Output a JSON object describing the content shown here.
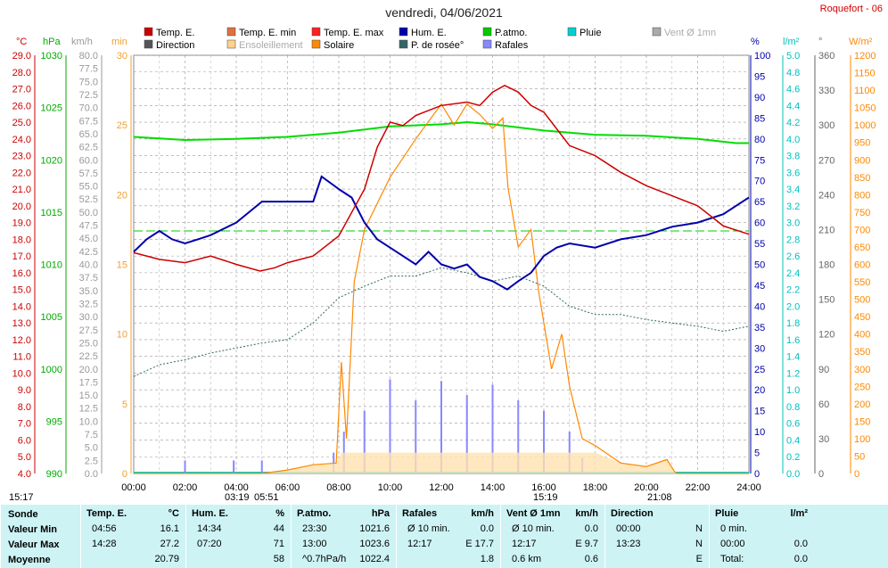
{
  "title": "vendredi, 04/06/2021",
  "station": "Roquefort - 06",
  "legend": [
    {
      "label": "Temp. E.",
      "color": "#cc0000"
    },
    {
      "label": "Temp. E. min",
      "color": "#e07040"
    },
    {
      "label": "Temp. E. max",
      "color": "#ff2020"
    },
    {
      "label": "Hum. E.",
      "color": "#0000aa"
    },
    {
      "label": "P.atmo.",
      "color": "#00cc00"
    },
    {
      "label": "Pluie",
      "color": "#00d0d0"
    },
    {
      "label": "Vent Ø 1mn",
      "color": "#aaaaaa"
    },
    {
      "label": "Direction",
      "color": "#555555"
    },
    {
      "label": "Ensoleillement",
      "color": "#ffd28a"
    },
    {
      "label": "Solaire",
      "color": "#ff8800"
    },
    {
      "label": "P. de rosée°",
      "color": "#336666"
    },
    {
      "label": "Rafales",
      "color": "#8888ff"
    }
  ],
  "axis_units": {
    "temp": "°C",
    "press": "hPa",
    "wind": "km/h",
    "min": "min",
    "hum": "%",
    "rain": "l/m²",
    "dir": "°",
    "solar": "W/m²"
  },
  "time_marks": {
    "now": "15:17",
    "sunrise": "03:19",
    "sunrise2": "05:51",
    "tmax": "15:19",
    "sunset": "21:08"
  },
  "footer": {
    "sonde": {
      "header": "Sonde",
      "rows": [
        "Valeur Min",
        "Valeur Max",
        "Moyenne"
      ]
    },
    "temp": {
      "header": "Temp. E.",
      "unit": "°C",
      "times": [
        "04:56",
        "14:28",
        ""
      ],
      "values": [
        "16.1",
        "27.2",
        "20.79"
      ]
    },
    "hum": {
      "header": "Hum. E.",
      "unit": "%",
      "times": [
        "14:34",
        "07:20",
        ""
      ],
      "values": [
        "44",
        "71",
        "58"
      ]
    },
    "press": {
      "header": "P.atmo.",
      "unit": "hPa",
      "times": [
        "23:30",
        "13:00",
        "^0.7hPa/h"
      ],
      "values": [
        "1021.6",
        "1023.6",
        "1022.4"
      ]
    },
    "gust": {
      "header": "Rafales",
      "unit": "km/h",
      "times": [
        "Ø 10 min.",
        "12:17",
        ""
      ],
      "values": [
        "0.0",
        "E 17.7",
        "1.8"
      ]
    },
    "wind": {
      "header": "Vent Ø 1mn",
      "unit": "km/h",
      "times": [
        "Ø 10 min.",
        "12:17",
        "0.6 km"
      ],
      "values": [
        "0.0",
        "E 9.7",
        "0.6"
      ]
    },
    "dir": {
      "header": "Direction",
      "unit": "",
      "times": [
        "00:00",
        "13:23",
        ""
      ],
      "values": [
        "N",
        "N",
        "E"
      ]
    },
    "rain": {
      "header": "Pluie",
      "unit": "l/m²",
      "times": [
        "0 min.",
        "00:00",
        "Total:"
      ],
      "values": [
        "",
        "0.0",
        "0.0"
      ]
    }
  },
  "chart_data": {
    "type": "line",
    "x_range": [
      "00:00",
      "24:00"
    ],
    "x_ticks": [
      "00:00",
      "02:00",
      "04:00",
      "06:00",
      "08:00",
      "10:00",
      "12:00",
      "14:00",
      "16:00",
      "18:00",
      "20:00",
      "22:00",
      "24:00"
    ],
    "axes": {
      "temp": {
        "range": [
          4,
          29
        ],
        "step": 1
      },
      "press": {
        "range": [
          990,
          1030
        ],
        "step": 5
      },
      "wind": {
        "range": [
          0,
          80
        ],
        "step": 2.5
      },
      "min": {
        "range": [
          0,
          30
        ],
        "step": 5
      },
      "hum": {
        "range": [
          0,
          100
        ],
        "step": 5
      },
      "rain": {
        "range": [
          0,
          5
        ],
        "step": 0.2
      },
      "dir": {
        "range": [
          0,
          360
        ],
        "step": 30
      },
      "solar": {
        "range": [
          0,
          1200
        ],
        "step": 50
      }
    },
    "series": [
      {
        "name": "Temp. E.",
        "axis": "temp",
        "points": [
          [
            0,
            17.2
          ],
          [
            1,
            16.8
          ],
          [
            2,
            16.6
          ],
          [
            3,
            17.0
          ],
          [
            4,
            16.5
          ],
          [
            4.93,
            16.1
          ],
          [
            5.5,
            16.3
          ],
          [
            6,
            16.6
          ],
          [
            7,
            17.0
          ],
          [
            8,
            18.2
          ],
          [
            9,
            21.0
          ],
          [
            9.5,
            23.5
          ],
          [
            10,
            25.0
          ],
          [
            10.5,
            24.8
          ],
          [
            11,
            25.4
          ],
          [
            12,
            26.0
          ],
          [
            13,
            26.2
          ],
          [
            13.5,
            26.0
          ],
          [
            14,
            26.8
          ],
          [
            14.47,
            27.2
          ],
          [
            15,
            26.8
          ],
          [
            15.5,
            26.0
          ],
          [
            16,
            25.6
          ],
          [
            16.5,
            24.6
          ],
          [
            17,
            23.6
          ],
          [
            18,
            23.0
          ],
          [
            19,
            22.0
          ],
          [
            20,
            21.2
          ],
          [
            21,
            20.6
          ],
          [
            22,
            20.0
          ],
          [
            23,
            18.8
          ],
          [
            24,
            18.3
          ]
        ]
      },
      {
        "name": "Hum. E.",
        "axis": "hum",
        "points": [
          [
            0,
            53
          ],
          [
            0.5,
            56
          ],
          [
            1,
            58
          ],
          [
            1.5,
            56
          ],
          [
            2,
            55
          ],
          [
            2.5,
            56
          ],
          [
            3,
            57
          ],
          [
            4,
            60
          ],
          [
            5,
            65
          ],
          [
            6,
            65
          ],
          [
            7,
            65
          ],
          [
            7.33,
            71
          ],
          [
            8,
            68
          ],
          [
            8.5,
            66
          ],
          [
            9,
            60
          ],
          [
            9.5,
            56
          ],
          [
            10,
            54
          ],
          [
            10.5,
            52
          ],
          [
            11,
            50
          ],
          [
            11.5,
            53
          ],
          [
            12,
            50
          ],
          [
            12.5,
            49
          ],
          [
            13,
            50
          ],
          [
            13.5,
            47
          ],
          [
            14,
            46
          ],
          [
            14.57,
            44
          ],
          [
            15,
            46
          ],
          [
            15.5,
            48
          ],
          [
            16,
            52
          ],
          [
            16.5,
            54
          ],
          [
            17,
            55
          ],
          [
            18,
            54
          ],
          [
            19,
            56
          ],
          [
            20,
            57
          ],
          [
            21,
            59
          ],
          [
            22,
            60
          ],
          [
            23,
            62
          ],
          [
            23.5,
            64
          ],
          [
            24,
            66
          ]
        ]
      },
      {
        "name": "P.atmo.",
        "axis": "press",
        "points": [
          [
            0,
            1022.2
          ],
          [
            2,
            1021.9
          ],
          [
            4,
            1022.0
          ],
          [
            6,
            1022.2
          ],
          [
            8,
            1022.6
          ],
          [
            10,
            1023.2
          ],
          [
            12,
            1023.4
          ],
          [
            13,
            1023.6
          ],
          [
            14,
            1023.4
          ],
          [
            16,
            1022.8
          ],
          [
            18,
            1022.4
          ],
          [
            20,
            1022.3
          ],
          [
            22,
            1022.0
          ],
          [
            23.5,
            1021.6
          ],
          [
            24,
            1021.6
          ]
        ]
      },
      {
        "name": "P. de rosée°",
        "axis": "temp",
        "points": [
          [
            0,
            9.8
          ],
          [
            1,
            10.5
          ],
          [
            2,
            10.8
          ],
          [
            3,
            11.2
          ],
          [
            4,
            11.5
          ],
          [
            5,
            11.8
          ],
          [
            6,
            12.0
          ],
          [
            7,
            13.0
          ],
          [
            8,
            14.5
          ],
          [
            9,
            15.2
          ],
          [
            10,
            15.8
          ],
          [
            11,
            15.8
          ],
          [
            12,
            16.3
          ],
          [
            13,
            16.0
          ],
          [
            14,
            15.5
          ],
          [
            15,
            15.8
          ],
          [
            16,
            15.2
          ],
          [
            17,
            14.0
          ],
          [
            18,
            13.5
          ],
          [
            19,
            13.5
          ],
          [
            20,
            13.2
          ],
          [
            21,
            13.0
          ],
          [
            22,
            12.8
          ],
          [
            23,
            12.5
          ],
          [
            24,
            12.8
          ]
        ]
      },
      {
        "name": "Solaire",
        "axis": "solar",
        "points": [
          [
            0,
            0
          ],
          [
            5,
            0
          ],
          [
            6,
            10
          ],
          [
            7,
            25
          ],
          [
            7.9,
            30
          ],
          [
            8.1,
            320
          ],
          [
            8.3,
            100
          ],
          [
            8.6,
            550
          ],
          [
            9,
            700
          ],
          [
            10,
            850
          ],
          [
            11,
            960
          ],
          [
            11.5,
            1010
          ],
          [
            12,
            1060
          ],
          [
            12.5,
            1000
          ],
          [
            13,
            1060
          ],
          [
            13.5,
            1030
          ],
          [
            14,
            990
          ],
          [
            14.4,
            1020
          ],
          [
            14.6,
            820
          ],
          [
            15,
            650
          ],
          [
            15.5,
            700
          ],
          [
            15.8,
            520
          ],
          [
            16.3,
            300
          ],
          [
            16.7,
            400
          ],
          [
            17,
            250
          ],
          [
            17.5,
            100
          ],
          [
            18,
            80
          ],
          [
            19,
            30
          ],
          [
            20,
            20
          ],
          [
            20.8,
            40
          ],
          [
            21.1,
            5
          ],
          [
            21.2,
            0
          ],
          [
            24,
            0
          ]
        ]
      },
      {
        "name": "Rafales",
        "axis": "wind",
        "type": "bars",
        "values_by_hour": [
          [
            2,
            2.5
          ],
          [
            3.9,
            2.5
          ],
          [
            5,
            2.5
          ],
          [
            7.8,
            4
          ],
          [
            8.2,
            8
          ],
          [
            9,
            12
          ],
          [
            10,
            18
          ],
          [
            11,
            14
          ],
          [
            12,
            17.7
          ],
          [
            13,
            15
          ],
          [
            14,
            17
          ],
          [
            15,
            14
          ],
          [
            16,
            12
          ],
          [
            17,
            8
          ],
          [
            17.5,
            3
          ]
        ]
      }
    ]
  }
}
